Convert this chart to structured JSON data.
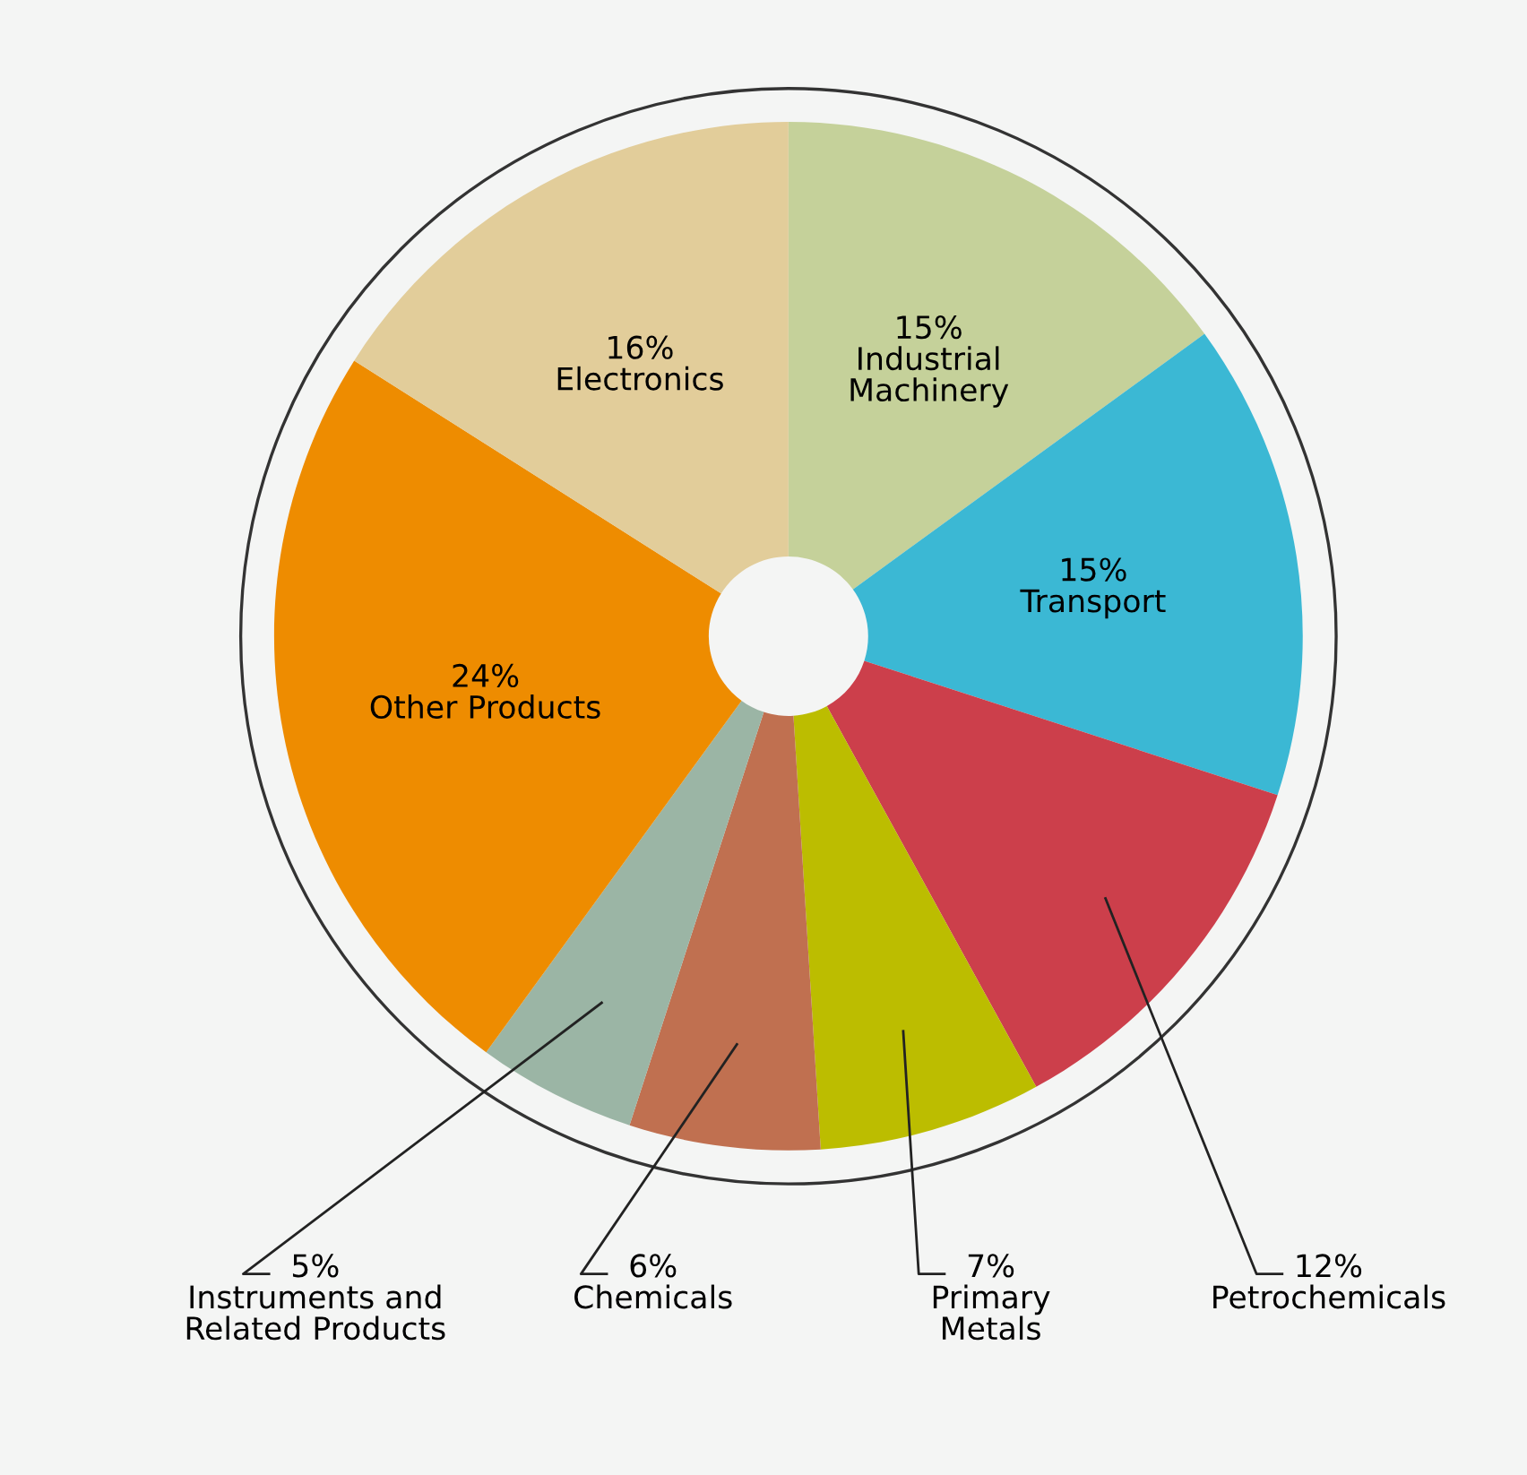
{
  "chart_data": {
    "type": "donut",
    "categories": [
      "Industrial\nMachinery",
      "Transport",
      "Petrochemicals",
      "Primary\nMetals",
      "Chemicals",
      "Instruments and\nRelated Products",
      "Other Products",
      "Electronics"
    ],
    "values": [
      15,
      15,
      12,
      7,
      6,
      5,
      24,
      16
    ],
    "value_labels": [
      "15%",
      "15%",
      "12%",
      "7%",
      "6%",
      "5%",
      "24%",
      "16%"
    ],
    "colors": [
      "#c5d19a",
      "#3bb8d4",
      "#cc3f4b",
      "#bcbd00",
      "#c07050",
      "#9bb5a5",
      "#ee8c00",
      "#e2cd9a"
    ]
  }
}
